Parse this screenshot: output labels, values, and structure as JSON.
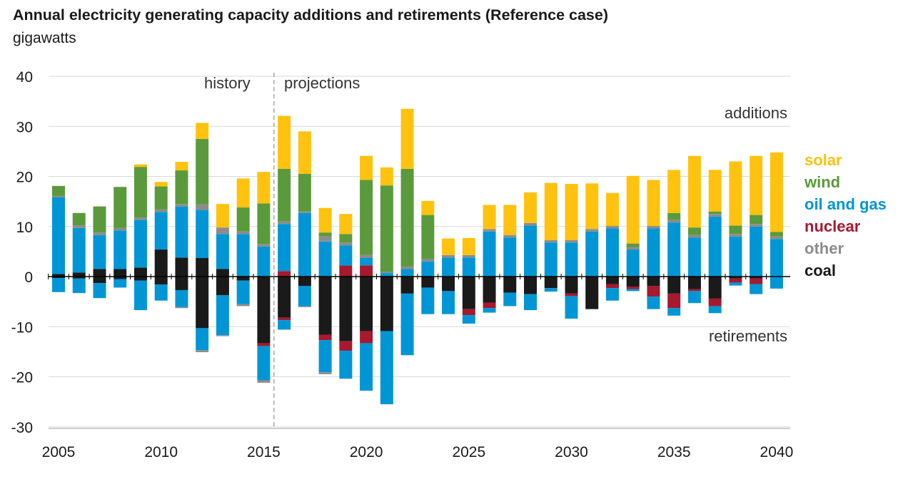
{
  "title": "Annual electricity generating capacity additions and retirements (Reference case)",
  "subtitle": "gigawatts",
  "annotations": {
    "history": "history",
    "projections": "projections",
    "additions": "additions",
    "retirements": "retirements"
  },
  "colors": {
    "solar": "#FFC20E",
    "wind": "#5A9A3C",
    "oil_gas": "#0096D6",
    "nuclear": "#A6192E",
    "other": "#8C8C8C",
    "coal": "#1A1A1A"
  },
  "chart_data": {
    "type": "bar",
    "stacked": true,
    "ylim": [
      -30,
      40
    ],
    "yticks": [
      40,
      30,
      20,
      10,
      0,
      -10,
      -20,
      -30
    ],
    "xticks": [
      2005,
      2010,
      2015,
      2020,
      2025,
      2030,
      2035,
      2040
    ],
    "history_projection_divider": "between 2015 and 2016",
    "legend_placement": "right",
    "categories": [
      2005,
      2006,
      2007,
      2008,
      2009,
      2010,
      2011,
      2012,
      2013,
      2014,
      2015,
      2016,
      2017,
      2018,
      2019,
      2020,
      2021,
      2022,
      2023,
      2024,
      2025,
      2026,
      2027,
      2028,
      2029,
      2030,
      2031,
      2032,
      2033,
      2034,
      2035,
      2036,
      2037,
      2038,
      2039,
      2040
    ],
    "additions": [
      {
        "name": "coal",
        "values": [
          0.5,
          0.8,
          1.5,
          1.5,
          1.8,
          5.4,
          3.8,
          3.7,
          1.5,
          0,
          0,
          0,
          0,
          0,
          0,
          0,
          0,
          0,
          0,
          0,
          0,
          0,
          0,
          0,
          0,
          0,
          0,
          0,
          0,
          0,
          0,
          0,
          0,
          0,
          0,
          0
        ]
      },
      {
        "name": "nuclear",
        "values": [
          0,
          0,
          0,
          0,
          0,
          0,
          0,
          0,
          0,
          0,
          0,
          1.1,
          0,
          0,
          2.2,
          2.2,
          0,
          0,
          0,
          0,
          0,
          0,
          0,
          0,
          0,
          0,
          0,
          0,
          0,
          0,
          0,
          0,
          0,
          0,
          0,
          0
        ]
      },
      {
        "name": "oil and gas",
        "values": [
          15.3,
          8.9,
          6.8,
          7.7,
          9.5,
          7.5,
          10.2,
          9.6,
          7.0,
          8.5,
          6.0,
          9.4,
          12.7,
          7.0,
          4.0,
          1.5,
          0.7,
          1.5,
          3.0,
          3.8,
          3.8,
          9.0,
          7.8,
          10.2,
          6.8,
          6.8,
          9.0,
          9.6,
          5.4,
          9.6,
          10.8,
          7.8,
          12.0,
          8.0,
          10.0,
          7.5
        ]
      },
      {
        "name": "other",
        "values": [
          0.3,
          0.5,
          0.5,
          0.5,
          0.5,
          0.5,
          0.5,
          1.1,
          1.3,
          0.5,
          0.5,
          0.5,
          0.3,
          1.0,
          0.6,
          0.6,
          0.3,
          0.5,
          0.5,
          0.5,
          0.5,
          0.5,
          0.5,
          0.5,
          0.5,
          0.5,
          0.5,
          0.5,
          0.5,
          0.5,
          0.5,
          0.5,
          0.5,
          0.5,
          0.5,
          0.5
        ]
      },
      {
        "name": "wind",
        "values": [
          2.0,
          2.5,
          5.2,
          8.2,
          10.1,
          4.6,
          6.7,
          13.1,
          0,
          4.8,
          8.1,
          10.5,
          7.5,
          0.8,
          1.7,
          15.0,
          17.2,
          19.5,
          8.8,
          0,
          0,
          0,
          0,
          0,
          0,
          0,
          0,
          0,
          0.7,
          0,
          1.4,
          1.5,
          0.5,
          1.7,
          1.8,
          0.9
        ]
      },
      {
        "name": "solar",
        "values": [
          0,
          0,
          0,
          0,
          0.5,
          0.9,
          1.7,
          3.2,
          4.7,
          5.8,
          6.3,
          10.6,
          8.5,
          4.9,
          4.0,
          4.8,
          3.6,
          12.0,
          2.8,
          3.3,
          3.4,
          4.8,
          6.0,
          6.1,
          11.4,
          11.2,
          9.1,
          6.6,
          13.5,
          9.2,
          8.6,
          14.3,
          8.3,
          12.8,
          11.8,
          15.9
        ]
      }
    ],
    "retirements": [
      {
        "name": "coal",
        "values": [
          -0.3,
          -0.4,
          -1.3,
          -0.5,
          -0.8,
          -1.6,
          -2.7,
          -10.3,
          -3.7,
          -0.8,
          -13.3,
          -8.2,
          -1.9,
          -11.6,
          -12.9,
          -10.9,
          -10.9,
          -3.4,
          -2.2,
          -2.9,
          -6.5,
          -5.2,
          -3.2,
          -3.5,
          -2.3,
          -3.4,
          -6.5,
          -1.5,
          -2.0,
          -1.9,
          -3.4,
          -2.5,
          -4.4,
          -0.4,
          -0.4,
          0
        ]
      },
      {
        "name": "nuclear",
        "values": [
          0,
          0,
          0,
          0,
          0,
          0,
          0,
          0,
          0,
          0,
          -0.6,
          -0.5,
          0,
          -1.1,
          -1.9,
          -2.4,
          0,
          0,
          0,
          0,
          -1.2,
          -1.1,
          0,
          0,
          0,
          -0.5,
          0,
          -0.8,
          -0.5,
          -2.1,
          -2.9,
          -0.4,
          -1.5,
          -0.8,
          -1.1,
          0
        ]
      },
      {
        "name": "oil and gas",
        "values": [
          -2.8,
          -2.9,
          -3.0,
          -1.7,
          -5.9,
          -3.2,
          -3.4,
          -4.4,
          -8.0,
          -4.7,
          -6.8,
          -1.9,
          -4.0,
          -6.4,
          -5.6,
          -9.5,
          -14.6,
          -12.3,
          -5.3,
          -4.6,
          -1.7,
          -0.9,
          -2.7,
          -3.2,
          -0.7,
          -4.5,
          0,
          -2.5,
          -0.4,
          -2.5,
          -1.5,
          -2.4,
          -1.4,
          -0.6,
          -2.0,
          -2.4
        ]
      },
      {
        "name": "other",
        "values": [
          0,
          0,
          0,
          0,
          0,
          0,
          -0.2,
          -0.4,
          -0.2,
          -0.4,
          -0.5,
          0,
          -0.2,
          -0.4,
          0,
          0,
          0,
          0,
          0,
          0,
          0,
          0,
          0,
          0,
          0,
          0,
          0,
          0,
          0,
          0,
          0,
          0,
          0,
          0,
          0,
          0
        ]
      }
    ]
  },
  "legend": [
    {
      "key": "solar",
      "label": "solar"
    },
    {
      "key": "wind",
      "label": "wind"
    },
    {
      "key": "oil_gas",
      "label": "oil and gas"
    },
    {
      "key": "nuclear",
      "label": "nuclear"
    },
    {
      "key": "other",
      "label": "other"
    },
    {
      "key": "coal",
      "label": "coal"
    }
  ]
}
